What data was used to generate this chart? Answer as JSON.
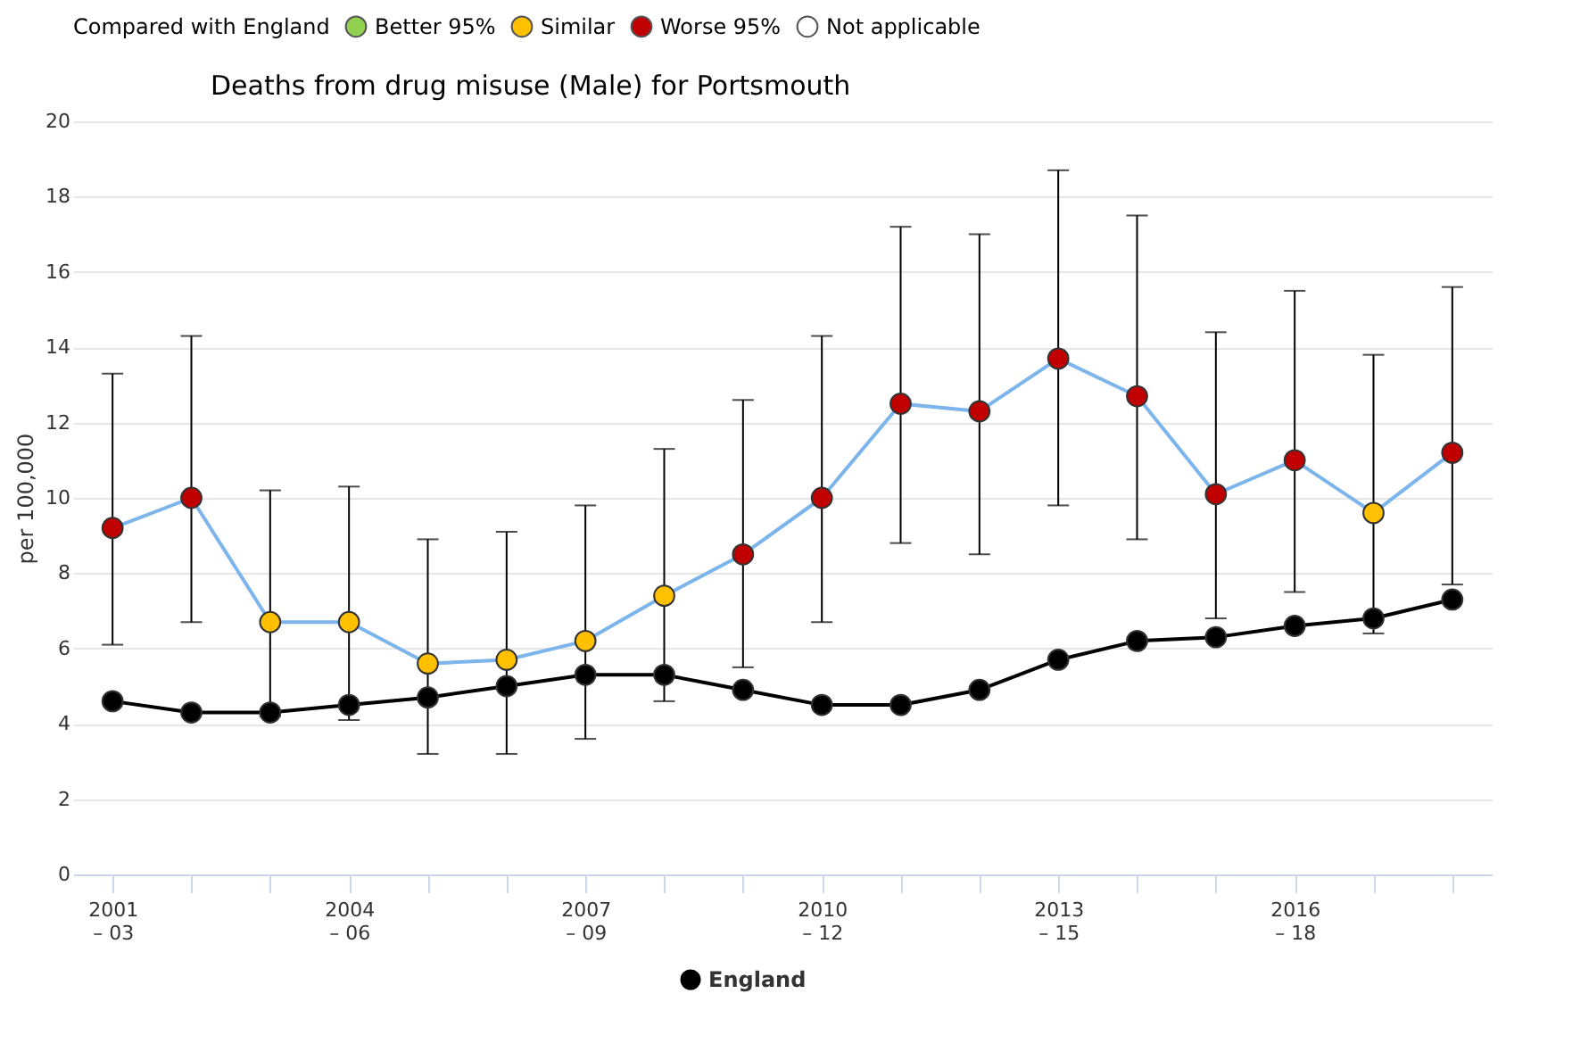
{
  "chart_data": {
    "type": "line",
    "title": "Deaths from drug misuse (Male) for Portsmouth",
    "ylabel": "per 100,000",
    "legend_title": "Compared with England",
    "categories": [
      "2001 – 03",
      null,
      null,
      "2004 – 06",
      null,
      null,
      "2007 – 09",
      null,
      null,
      "2010 – 12",
      null,
      null,
      "2013 – 15",
      null,
      null,
      "2016 – 18",
      null,
      null
    ],
    "ylim": [
      0,
      20
    ],
    "yticks": [
      0,
      2,
      4,
      6,
      8,
      10,
      12,
      14,
      16,
      18,
      20
    ],
    "grid": "y",
    "legend": "bottom",
    "marker": "circle",
    "series": [
      {
        "color": "#7cb5ec",
        "colors": [
          "#c00000",
          "#c00000",
          "#ffc000",
          "#ffc000",
          "#ffc000",
          "#ffc000",
          "#ffc000",
          "#ffc000",
          "#c00000",
          "#c00000",
          "#c00000",
          "#c00000",
          "#c00000",
          "#c00000",
          "#c00000",
          "#c00000",
          "#ffc000",
          "#c00000"
        ],
        "values": [
          9.2,
          10.0,
          6.7,
          6.7,
          5.6,
          5.7,
          6.2,
          7.4,
          8.5,
          10.0,
          12.5,
          12.3,
          13.7,
          12.7,
          10.1,
          11.0,
          9.6,
          11.2
        ],
        "errors": [
          [
            6.1,
            13.3
          ],
          [
            6.7,
            14.3
          ],
          [
            4.2,
            10.2
          ],
          [
            4.1,
            10.3
          ],
          [
            3.2,
            8.9
          ],
          [
            3.2,
            9.1
          ],
          [
            3.6,
            9.8
          ],
          [
            4.6,
            11.3
          ],
          [
            5.5,
            12.6
          ],
          [
            6.7,
            14.3
          ],
          [
            8.8,
            17.2
          ],
          [
            8.5,
            17.0
          ],
          [
            9.8,
            18.7
          ],
          [
            8.9,
            17.5
          ],
          [
            6.8,
            14.4
          ],
          [
            7.5,
            15.5
          ],
          [
            6.4,
            13.8
          ],
          [
            7.7,
            15.6
          ]
        ]
      },
      {
        "name": "England",
        "color": "#000000",
        "values": [
          4.6,
          4.3,
          4.3,
          4.5,
          4.7,
          5.0,
          5.3,
          5.3,
          4.9,
          4.5,
          4.5,
          4.9,
          5.7,
          6.2,
          6.3,
          6.6,
          6.8,
          7.3
        ]
      },
      {
        "name": "Better 95%",
        "type": "scatter",
        "color": "#92d050",
        "values": [
          null,
          null,
          null,
          null,
          null,
          null,
          null,
          null,
          null,
          null,
          null,
          null,
          null,
          null,
          null,
          null,
          null,
          null
        ]
      },
      {
        "name": "Similar",
        "type": "scatter",
        "color": "#ffc000",
        "values": [
          null,
          null,
          null,
          null,
          null,
          null,
          null,
          null,
          null,
          null,
          null,
          null,
          null,
          null,
          null,
          null,
          null,
          null
        ]
      },
      {
        "name": "Worse 95%",
        "type": "scatter",
        "color": "#c00000",
        "values": [
          null,
          null,
          null,
          null,
          null,
          null,
          null,
          null,
          null,
          null,
          null,
          null,
          null,
          null,
          null,
          null,
          null,
          null
        ]
      },
      {
        "name": "Not applicable",
        "type": "scatter",
        "color": "#ffffff",
        "values": [
          null,
          null,
          null,
          null,
          null,
          null,
          null,
          null,
          null,
          null,
          null,
          null,
          null,
          null,
          null,
          null,
          null,
          null
        ]
      }
    ]
  }
}
